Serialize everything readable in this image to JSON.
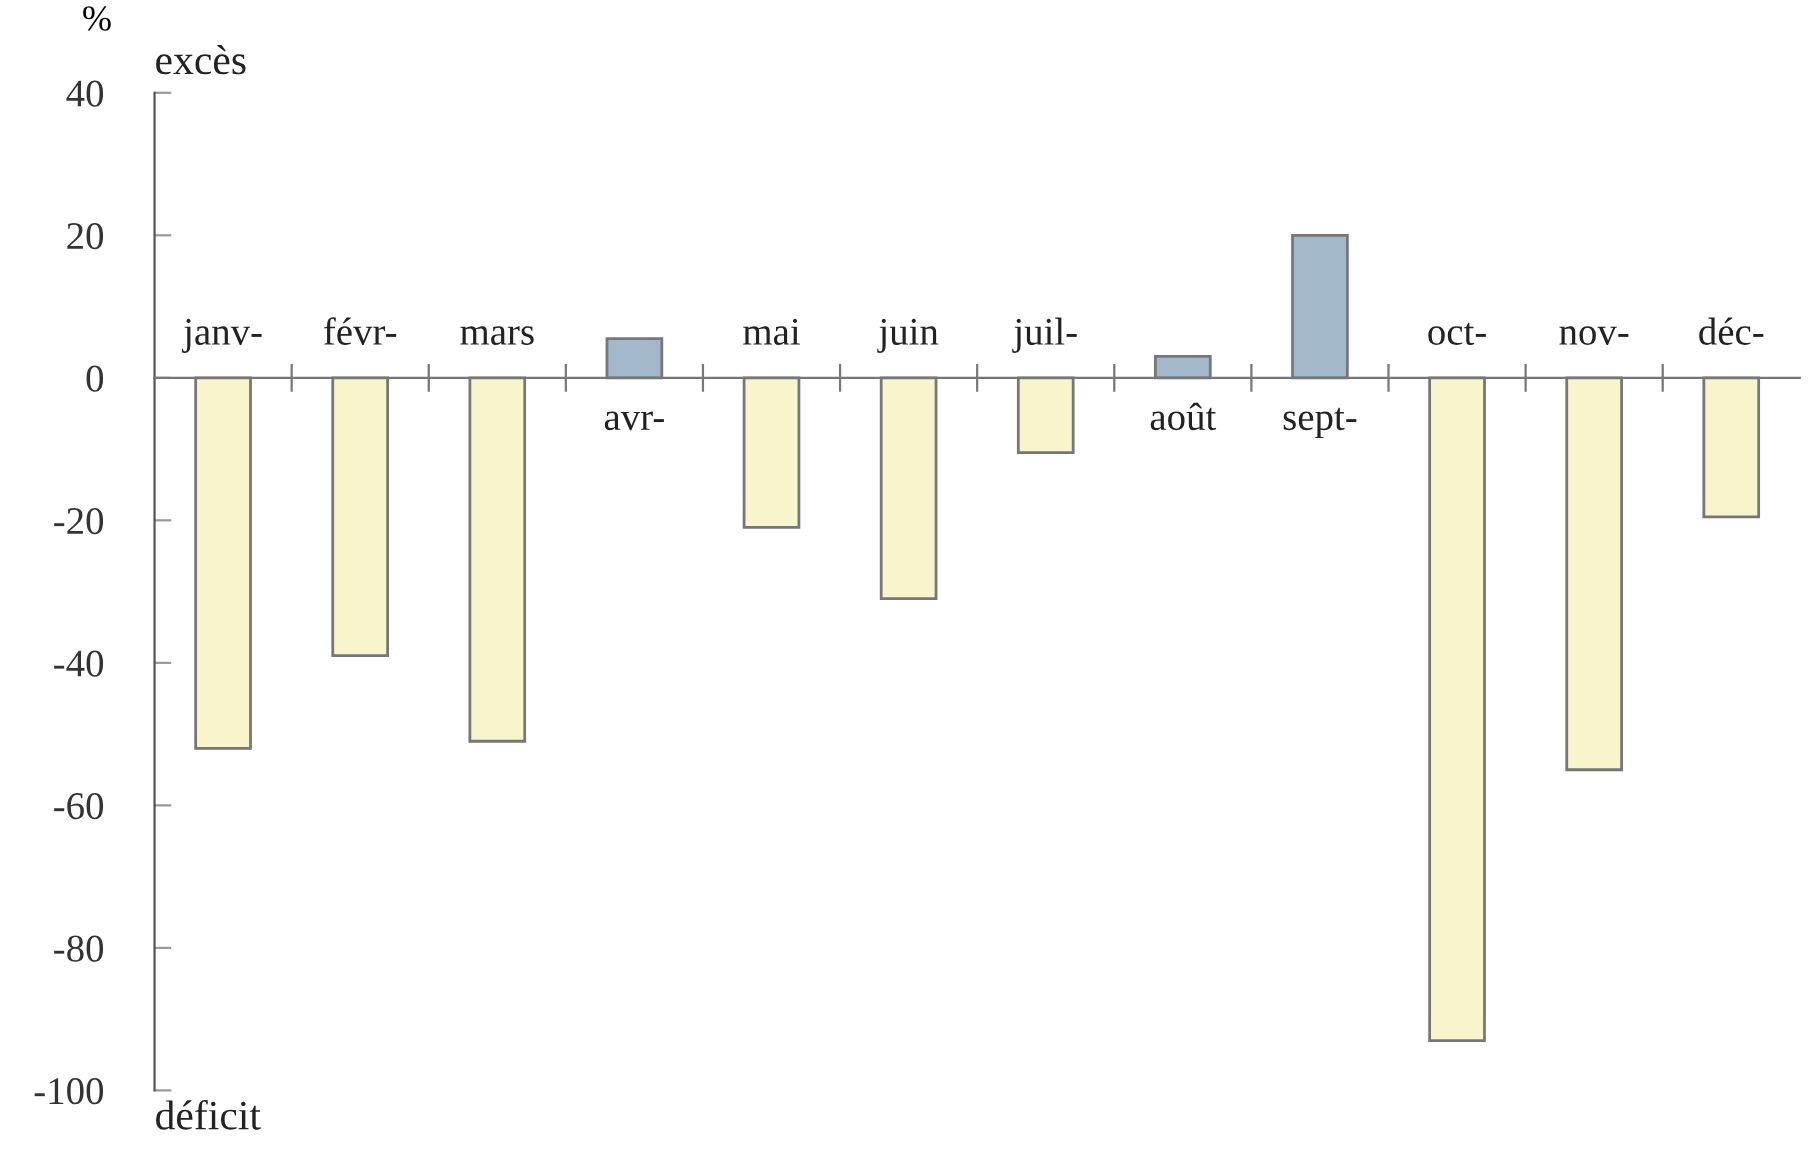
{
  "chart_data": {
    "type": "bar",
    "ylabel": "%",
    "categories": [
      "janv-",
      "févr-",
      "mars",
      "avr-",
      "mai",
      "juin",
      "juil-",
      "août",
      "sept-",
      "oct-",
      "nov-",
      "déc-"
    ],
    "values": [
      -52,
      -39,
      -51,
      5.5,
      -21,
      -31,
      -10.5,
      3,
      20,
      -93,
      -55,
      -19.5
    ],
    "colors": [
      "#f8f4cc",
      "#f8f4cc",
      "#f8f4cc",
      "#a4b8cc",
      "#f8f4cc",
      "#f8f4cc",
      "#f8f4cc",
      "#a4b8cc",
      "#a4b8cc",
      "#f8f4cc",
      "#f8f4cc",
      "#f8f4cc"
    ],
    "ylim": [
      -100,
      40
    ],
    "yticks": [
      -100,
      -80,
      -60,
      -40,
      -20,
      0,
      20,
      40
    ],
    "annotations": [
      "excès",
      "déficit"
    ],
    "grid": false,
    "legend": false
  }
}
